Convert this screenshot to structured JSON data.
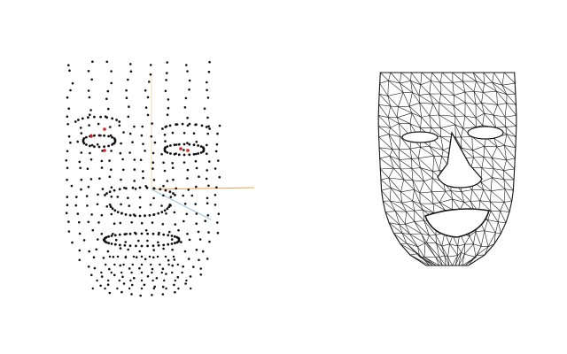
{
  "colors": {
    "background": "#ffffff",
    "point": "#111111",
    "landmark": "#d62020",
    "axis_x": "#f0a050",
    "axis_y": "#f2dcb0",
    "axis_z": "#9ec8e8",
    "mesh": "#1a1a1a"
  },
  "panels": {
    "left": {
      "kind": "face-landmark-point-cloud"
    },
    "right": {
      "kind": "face-wireframe-mesh"
    }
  }
}
